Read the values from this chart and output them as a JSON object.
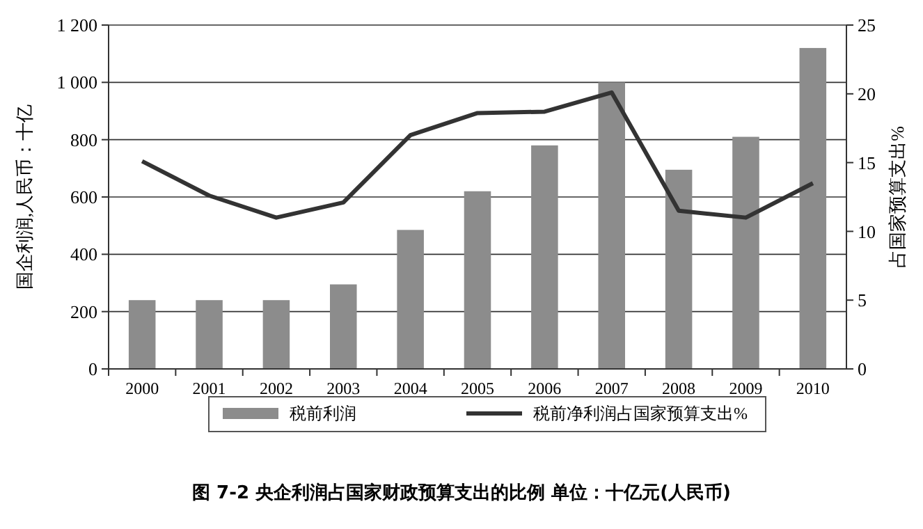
{
  "chart_data": {
    "type": "bar",
    "title": "图 7-2  央企利润占国家财政预算支出的比例  单位：十亿元(人民币)",
    "ylabel": "国企利润,人民币：十亿",
    "y2label": "占国家预算支出%",
    "categories": [
      "2000",
      "2001",
      "2002",
      "2003",
      "2004",
      "2005",
      "2006",
      "2007",
      "2008",
      "2009",
      "2010"
    ],
    "series": [
      {
        "name": "税前利润",
        "color": "#8c8c8c",
        "values": [
          240,
          240,
          240,
          295,
          485,
          620,
          780,
          1000,
          695,
          810,
          1120
        ]
      },
      {
        "name": "税前净利润占国家预算支出%",
        "type": "line",
        "axis": "y2",
        "color": "#333333",
        "values": [
          15.1,
          12.6,
          11.0,
          12.1,
          17.0,
          18.6,
          18.7,
          20.1,
          11.5,
          11.0,
          13.5
        ]
      }
    ],
    "ylim": [
      0,
      1200
    ],
    "yticks": [
      0,
      200,
      400,
      600,
      800,
      {
        "value": 1000,
        "label": "1 000"
      },
      {
        "value": 1200,
        "label": "1 200"
      }
    ],
    "y2lim": [
      0,
      25
    ],
    "y2ticks": [
      0,
      5,
      10,
      15,
      20,
      25
    ],
    "grid": "y",
    "legend": "bottom",
    "marker": "none",
    "line_style": "solid"
  }
}
